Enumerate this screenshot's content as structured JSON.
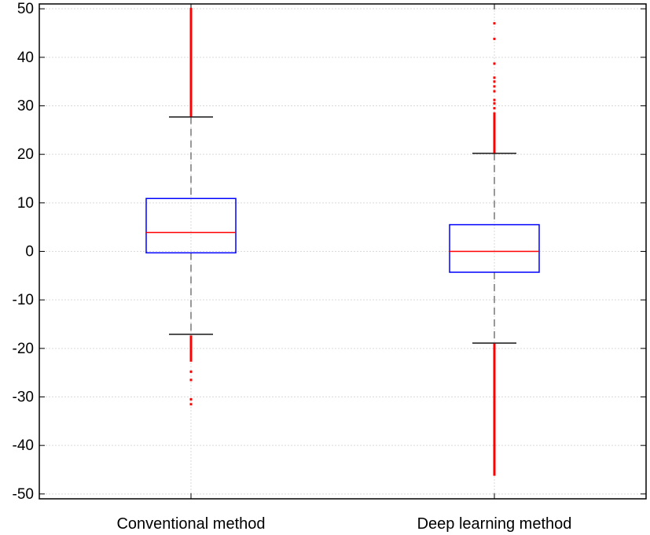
{
  "chart_data": {
    "type": "box",
    "title": "",
    "xlabel": "",
    "ylabel": "",
    "ylim": [
      -51,
      51
    ],
    "yticks": [
      50,
      40,
      30,
      20,
      10,
      0,
      -10,
      -20,
      -30,
      -40,
      -50
    ],
    "ytick_labels": [
      "50",
      "40",
      "30",
      "20",
      "10",
      "0",
      "-10",
      "-20",
      "-30",
      "-40",
      "-50"
    ],
    "grid": true,
    "categories": [
      "Conventional method",
      "Deep learning method"
    ],
    "boxes": [
      {
        "name": "Conventional method",
        "q1": -0.3,
        "median": 3.9,
        "q3": 10.9,
        "whisker_low": -17.1,
        "whisker_high": 27.7,
        "outliers_high_dense_range": [
          28.0,
          50.0
        ],
        "outliers_low_dense_range": [
          -22.5,
          -17.5
        ],
        "outliers": [
          -24.8,
          -26.5,
          -30.5,
          -31.5
        ]
      },
      {
        "name": "Deep learning method",
        "q1": -4.3,
        "median": 0.0,
        "q3": 5.5,
        "whisker_low": -18.9,
        "whisker_high": 20.2,
        "outliers_high_dense_range": [
          20.5,
          28.5
        ],
        "outliers_low_dense_range": [
          -19.2,
          -46.0
        ],
        "outliers": [
          29.5,
          30.5,
          31.2,
          33.0,
          34.0,
          35.0,
          35.8,
          38.7,
          43.8,
          47.0
        ]
      }
    ],
    "colors": {
      "box": "#0000ff",
      "median": "#ff0000",
      "whisker": "#000000",
      "outlier": "#ff0000",
      "grid": "#d9d9d9"
    }
  }
}
